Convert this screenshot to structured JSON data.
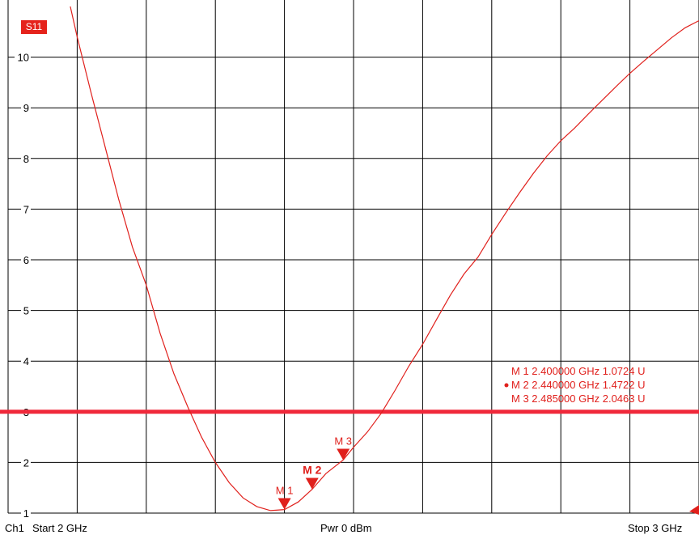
{
  "trace_badge": "S11",
  "footer": {
    "channel": "Ch1",
    "start": "Start  2 GHz",
    "power": "Pwr  0 dBm",
    "stop": "Stop  3 GHz"
  },
  "colors": {
    "trace": "#e0201c",
    "limit_line": "#f0283a",
    "grid": "#000000"
  },
  "chart_data": {
    "type": "line",
    "trace": "S11",
    "x_unit": "GHz",
    "y_unit": "U",
    "xlim": [
      2.0,
      3.0
    ],
    "ylim": [
      1,
      11
    ],
    "yticks": [
      1,
      2,
      3,
      4,
      5,
      6,
      7,
      8,
      9,
      10
    ],
    "y_tick_labels": [
      "1",
      "2",
      "3",
      "4",
      "5",
      "6",
      "7",
      "8",
      "9",
      "10"
    ],
    "grid": true,
    "limit_line_y": 3,
    "series": [
      {
        "x": [
          2.09,
          2.1,
          2.12,
          2.14,
          2.16,
          2.18,
          2.2,
          2.22,
          2.24,
          2.26,
          2.28,
          2.3,
          2.32,
          2.34,
          2.36,
          2.38,
          2.4,
          2.42,
          2.44,
          2.46,
          2.485,
          2.5,
          2.52,
          2.54,
          2.56,
          2.58,
          2.6,
          2.62,
          2.64,
          2.66,
          2.68,
          2.7,
          2.72,
          2.74,
          2.76,
          2.78,
          2.8,
          2.82,
          2.84,
          2.86,
          2.88,
          2.9,
          2.92,
          2.94,
          2.96,
          2.98,
          3.0
        ],
        "y": [
          11.0,
          10.4,
          9.3,
          8.25,
          7.2,
          6.25,
          5.5,
          4.55,
          3.75,
          3.1,
          2.5,
          2.0,
          1.6,
          1.3,
          1.13,
          1.05,
          1.07,
          1.22,
          1.47,
          1.78,
          2.05,
          2.3,
          2.6,
          2.97,
          3.42,
          3.9,
          4.33,
          4.82,
          5.3,
          5.72,
          6.05,
          6.5,
          6.92,
          7.32,
          7.7,
          8.05,
          8.35,
          8.6,
          8.88,
          9.15,
          9.42,
          9.68,
          9.92,
          10.15,
          10.38,
          10.58,
          10.72
        ]
      }
    ],
    "markers": [
      {
        "label": "M 1",
        "x": 2.4,
        "y": 1.0724,
        "active": false
      },
      {
        "label": "M 2",
        "x": 2.44,
        "y": 1.4722,
        "active": true
      },
      {
        "label": "M 3",
        "x": 2.485,
        "y": 2.0463,
        "active": false
      }
    ],
    "marker_table": [
      {
        "text": "M 1  2.400000 GHz   1.0724  U",
        "active": false
      },
      {
        "text": "M 2  2.440000 GHz   1.4722  U",
        "active": true
      },
      {
        "text": "M 3  2.485000 GHz   2.0463  U",
        "active": false
      }
    ]
  }
}
